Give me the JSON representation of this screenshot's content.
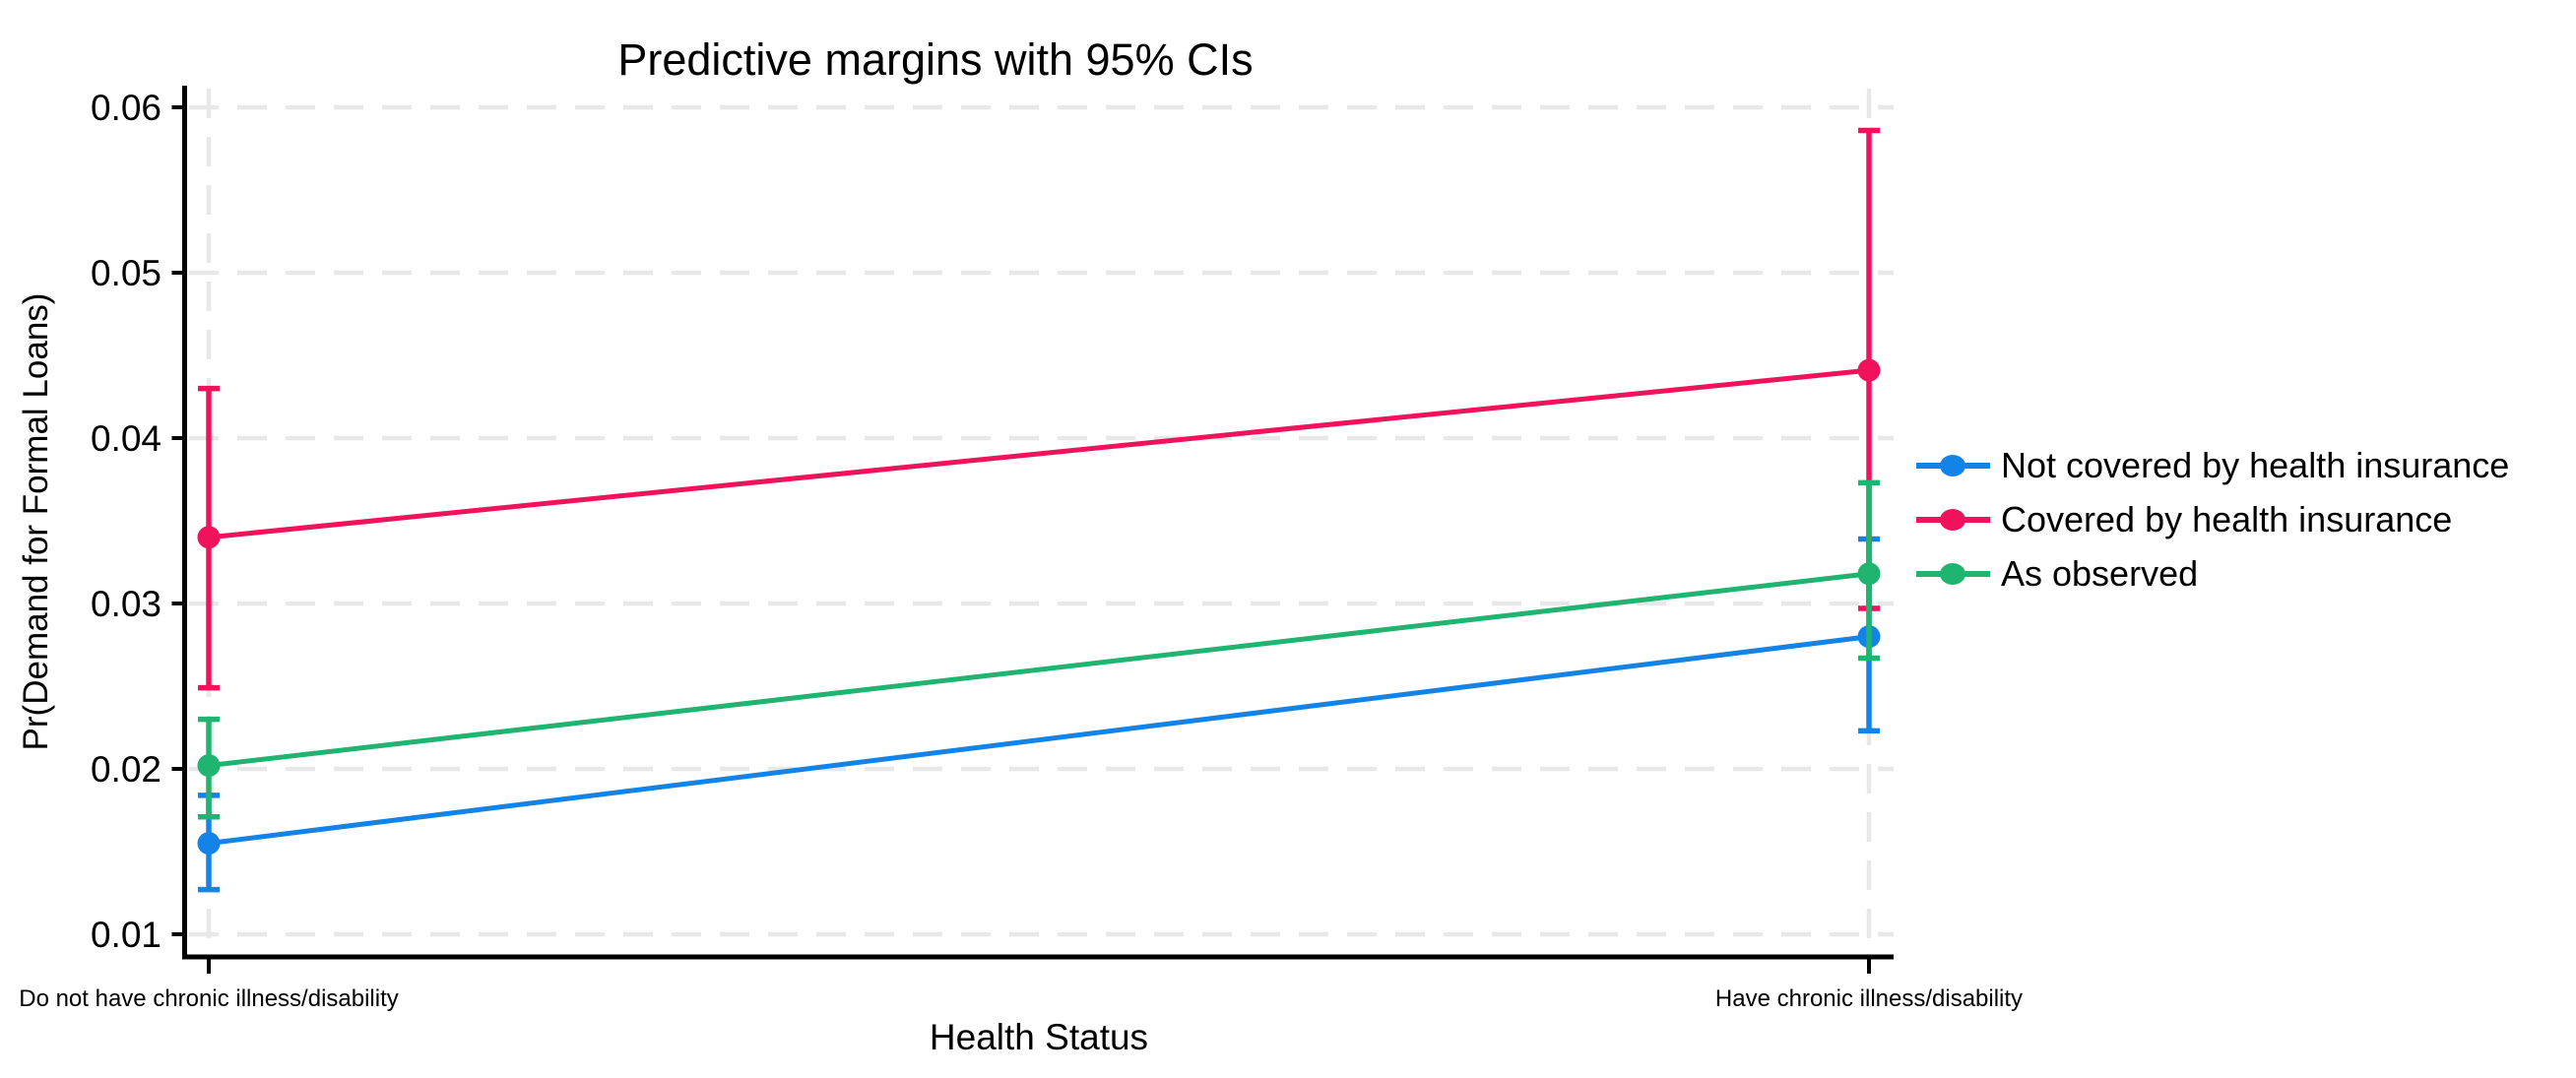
{
  "chart_data": {
    "type": "line",
    "title": "Predictive margins with 95% CIs",
    "ci_level": "95%",
    "xlabel": "Health Status",
    "ylabel": "Pr(Demand for Formal Loans)",
    "x_axis": {
      "label": "Health Status",
      "categories": [
        "Do not have chronic illness/disability",
        "Have chronic illness/disability"
      ]
    },
    "y_axis": {
      "label": "Pr(Demand for Formal Loans)",
      "range": [
        0.01,
        0.06
      ],
      "ticks": [
        {
          "value": 0.01,
          "label": "0.01"
        },
        {
          "value": 0.02,
          "label": "0.02"
        },
        {
          "value": 0.03,
          "label": "0.03"
        },
        {
          "value": 0.04,
          "label": "0.04"
        },
        {
          "value": 0.05,
          "label": "0.05"
        },
        {
          "value": 0.06,
          "label": "0.06"
        }
      ]
    },
    "grid": true,
    "legend_position": "right-outside",
    "series": [
      {
        "name": "Not covered by health insurance",
        "color": "#1483E8",
        "values": [
          0.0155,
          0.028
        ],
        "ci_low": [
          0.0127,
          0.0223
        ],
        "ci_high": [
          0.0184,
          0.0339
        ]
      },
      {
        "name": "Covered by health insurance",
        "color": "#F0135C",
        "values": [
          0.034,
          0.0441
        ],
        "ci_low": [
          0.0249,
          0.0297
        ],
        "ci_high": [
          0.043,
          0.0586
        ]
      },
      {
        "name": "As observed",
        "color": "#1FB470",
        "values": [
          0.0202,
          0.0318
        ],
        "ci_low": [
          0.0171,
          0.0267
        ],
        "ci_high": [
          0.023,
          0.0373
        ]
      }
    ],
    "colors": {
      "grid": "#E8E8E8",
      "axis": "#000000",
      "background": "#FFFFFF"
    }
  }
}
